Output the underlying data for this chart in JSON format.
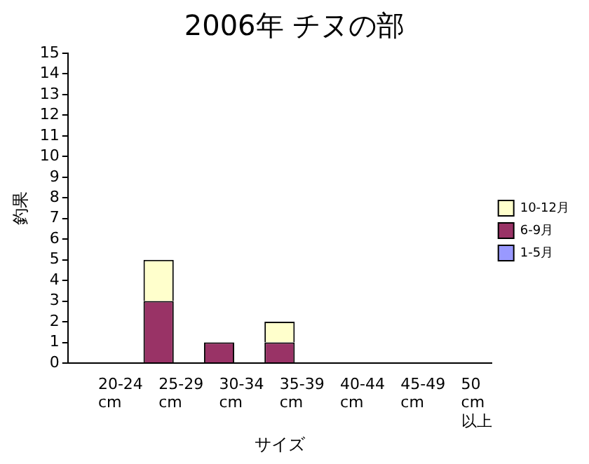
{
  "chart_data": {
    "type": "bar",
    "title": "2006年 チヌの部",
    "xlabel": "サイズ",
    "ylabel": "釣果",
    "categories": [
      "20-24 cm",
      "25-29 cm",
      "30-34 cm",
      "35-39 cm",
      "40-44 cm",
      "45-49 cm",
      "50 cm 以上"
    ],
    "series": [
      {
        "name": "1-5月",
        "color": "#9999ff",
        "values": [
          0,
          0,
          0,
          0,
          0,
          0,
          0
        ]
      },
      {
        "name": "6-9月",
        "color": "#993366",
        "values": [
          0,
          3,
          1,
          1,
          0,
          0,
          0
        ]
      },
      {
        "name": "10-12月",
        "color": "#ffffcc",
        "values": [
          0,
          2,
          0,
          1,
          0,
          0,
          0
        ]
      }
    ],
    "stacked": true,
    "ylim": [
      0,
      15
    ],
    "yticks": [
      0,
      1,
      2,
      3,
      4,
      5,
      6,
      7,
      8,
      9,
      10,
      11,
      12,
      13,
      14,
      15
    ],
    "grid": false,
    "legend": "right"
  }
}
